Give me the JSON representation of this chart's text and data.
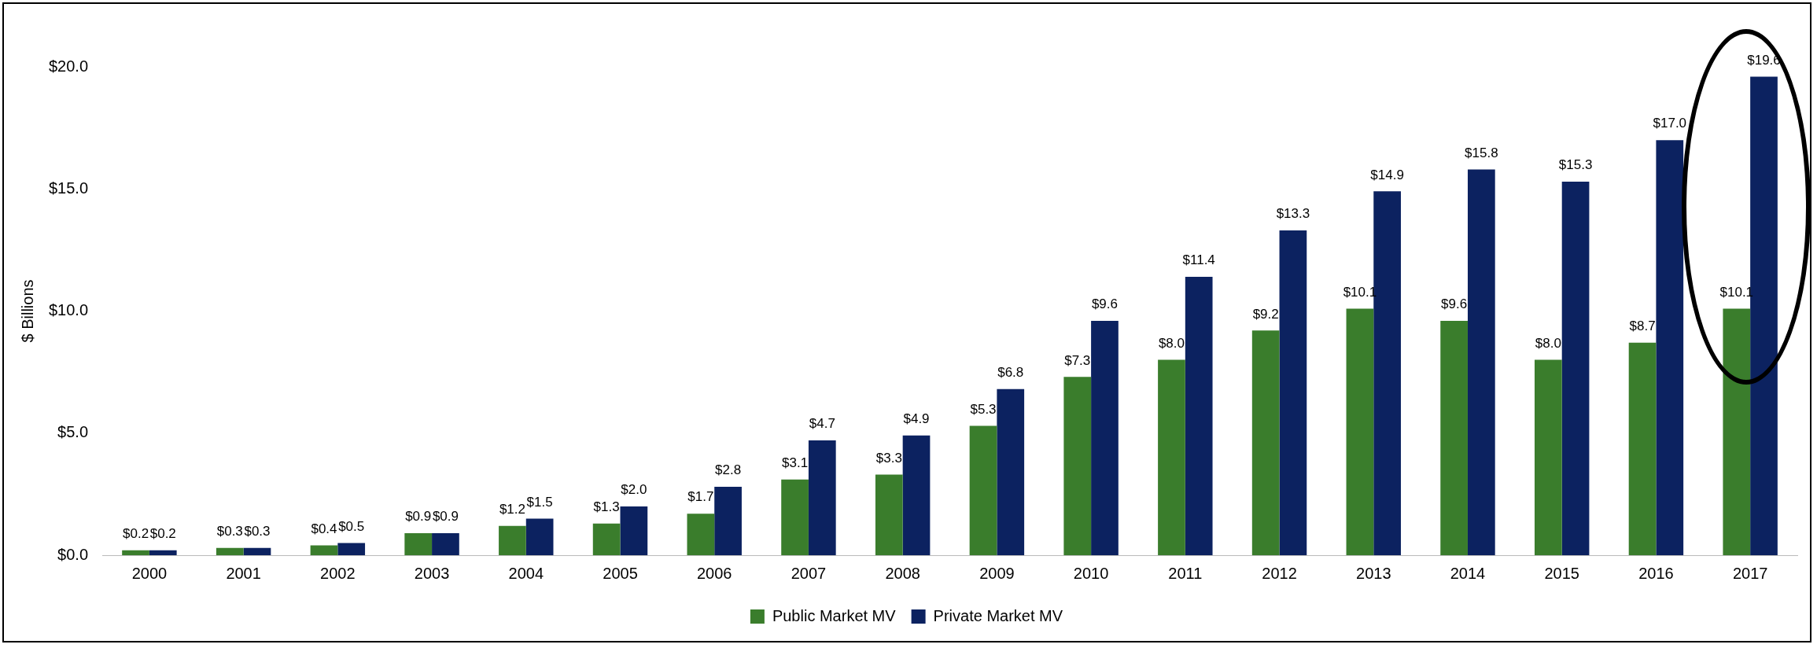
{
  "chart_data": {
    "type": "bar",
    "ylabel": "$ Billions",
    "categories": [
      "2000",
      "2001",
      "2002",
      "2003",
      "2004",
      "2005",
      "2006",
      "2007",
      "2008",
      "2009",
      "2010",
      "2011",
      "2012",
      "2013",
      "2014",
      "2015",
      "2016",
      "2017"
    ],
    "series": [
      {
        "name": "Public Market MV",
        "color": "#3a7d2c",
        "values": [
          0.2,
          0.3,
          0.4,
          0.9,
          1.2,
          1.3,
          1.7,
          3.1,
          3.3,
          5.3,
          7.3,
          8.0,
          9.2,
          10.1,
          9.6,
          8.0,
          8.7,
          10.1
        ],
        "value_labels": [
          "$0.2",
          "$0.3",
          "$0.4",
          "$0.9",
          "$1.2",
          "$1.3",
          "$1.7",
          "$3.1",
          "$3.3",
          "$5.3",
          "$7.3",
          "$8.0",
          "$9.2",
          "$10.1",
          "$9.6",
          "$8.0",
          "$8.7",
          "$10.1"
        ]
      },
      {
        "name": "Private Market MV",
        "color": "#0c2260",
        "values": [
          0.2,
          0.3,
          0.5,
          0.9,
          1.5,
          2.0,
          2.8,
          4.7,
          4.9,
          6.8,
          9.6,
          11.4,
          13.3,
          14.9,
          15.8,
          15.3,
          17.0,
          19.6
        ],
        "value_labels": [
          "$0.2",
          "$0.3",
          "$0.5",
          "$0.9",
          "$1.5",
          "$2.0",
          "$2.8",
          "$4.7",
          "$4.9",
          "$6.8",
          "$9.6",
          "$11.4",
          "$13.3",
          "$14.9",
          "$15.8",
          "$15.3",
          "$17.0",
          "$19.6"
        ]
      }
    ],
    "ylim": [
      0,
      20
    ],
    "yticks": [
      {
        "value": 0,
        "label": "$0.0"
      },
      {
        "value": 5,
        "label": "$5.0"
      },
      {
        "value": 10,
        "label": "$10.0"
      },
      {
        "value": 15,
        "label": "$15.0"
      },
      {
        "value": 20,
        "label": "$20.0"
      }
    ],
    "grid": false,
    "legend": "bottom"
  }
}
